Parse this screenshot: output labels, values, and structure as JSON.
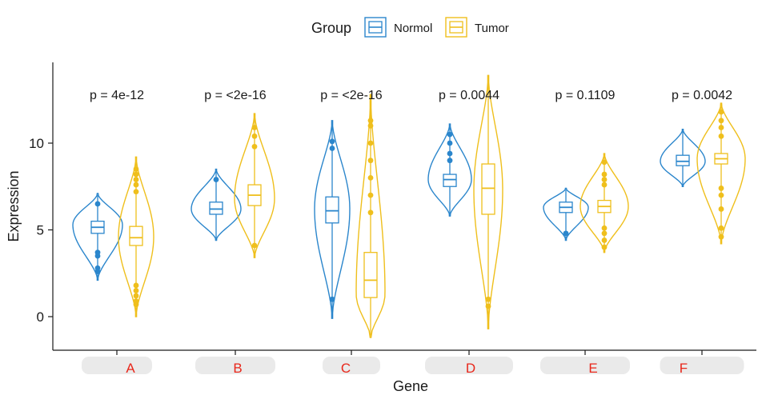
{
  "chart_data": {
    "type": "violin",
    "xlabel": "Gene",
    "ylabel": "Expression",
    "ylim": [
      -2,
      14.5
    ],
    "y_ticks": [
      0,
      5,
      10
    ],
    "categories": [
      "A",
      "B",
      "C",
      "D",
      "E",
      "F"
    ],
    "legend": {
      "title": "Group",
      "placement": "top",
      "items": [
        {
          "name": "Normol",
          "color": "#2b86cc"
        },
        {
          "name": "Tumor",
          "color": "#efbf1c"
        }
      ]
    },
    "p_values": [
      "p = 4e-12",
      "p = <2e-16",
      "p = <2e-16",
      "p = 0.0044",
      "p = 0.1109",
      "p = 0.0042"
    ],
    "series": [
      {
        "name": "Normol",
        "color": "#2b86cc",
        "stats": [
          {
            "min": 2.1,
            "max": 7.1,
            "q1": 4.8,
            "median": 5.15,
            "q3": 5.5,
            "widest": 5.3,
            "outliers": [
              2.6,
              2.8,
              3.5,
              3.7,
              6.5
            ]
          },
          {
            "min": 4.4,
            "max": 8.5,
            "q1": 5.9,
            "median": 6.2,
            "q3": 6.6,
            "widest": 6.2,
            "outliers": [
              7.9
            ]
          },
          {
            "min": -0.1,
            "max": 11.3,
            "q1": 5.4,
            "median": 6.1,
            "q3": 6.9,
            "widest": 6.2,
            "outliers": [
              1.0,
              9.7,
              10.1
            ]
          },
          {
            "min": 5.8,
            "max": 11.1,
            "q1": 7.5,
            "median": 7.9,
            "q3": 8.2,
            "widest": 7.9,
            "outliers": [
              9.0,
              9.4,
              10.0,
              10.5
            ]
          },
          {
            "min": 4.4,
            "max": 7.4,
            "q1": 6.0,
            "median": 6.3,
            "q3": 6.6,
            "widest": 6.3,
            "outliers": [
              4.8
            ]
          },
          {
            "min": 7.5,
            "max": 10.8,
            "q1": 8.7,
            "median": 8.95,
            "q3": 9.3,
            "widest": 8.95,
            "outliers": []
          }
        ]
      },
      {
        "name": "Tumor",
        "color": "#efbf1c",
        "stats": [
          {
            "min": 0.0,
            "max": 9.2,
            "q1": 4.1,
            "median": 4.55,
            "q3": 5.2,
            "widest": 4.6,
            "outliers": [
              0.7,
              0.9,
              1.2,
              1.5,
              1.8,
              7.2,
              7.6,
              7.9,
              8.2,
              8.5
            ]
          },
          {
            "min": 3.4,
            "max": 11.7,
            "q1": 6.4,
            "median": 7.0,
            "q3": 7.6,
            "widest": 6.8,
            "outliers": [
              4.1,
              9.8,
              10.4,
              10.9
            ]
          },
          {
            "min": -1.2,
            "max": 12.8,
            "q1": 1.1,
            "median": 2.1,
            "q3": 3.7,
            "widest": 1.3,
            "outliers": [
              6.0,
              7.0,
              8.0,
              9.0,
              10.0,
              11.0,
              11.3
            ]
          },
          {
            "min": -0.7,
            "max": 13.9,
            "q1": 5.9,
            "median": 7.4,
            "q3": 8.8,
            "widest": 7.3,
            "outliers": [
              0.6,
              1.0
            ]
          },
          {
            "min": 3.7,
            "max": 9.4,
            "q1": 6.0,
            "median": 6.35,
            "q3": 6.7,
            "widest": 6.35,
            "outliers": [
              4.0,
              4.4,
              4.8,
              5.1,
              7.6,
              7.9,
              8.2,
              8.9
            ]
          },
          {
            "min": 4.2,
            "max": 12.3,
            "q1": 8.8,
            "median": 9.1,
            "q3": 9.4,
            "widest": 9.1,
            "outliers": [
              4.6,
              5.1,
              6.2,
              7.0,
              7.4,
              10.4,
              10.9,
              11.3,
              11.8
            ]
          }
        ]
      }
    ]
  }
}
